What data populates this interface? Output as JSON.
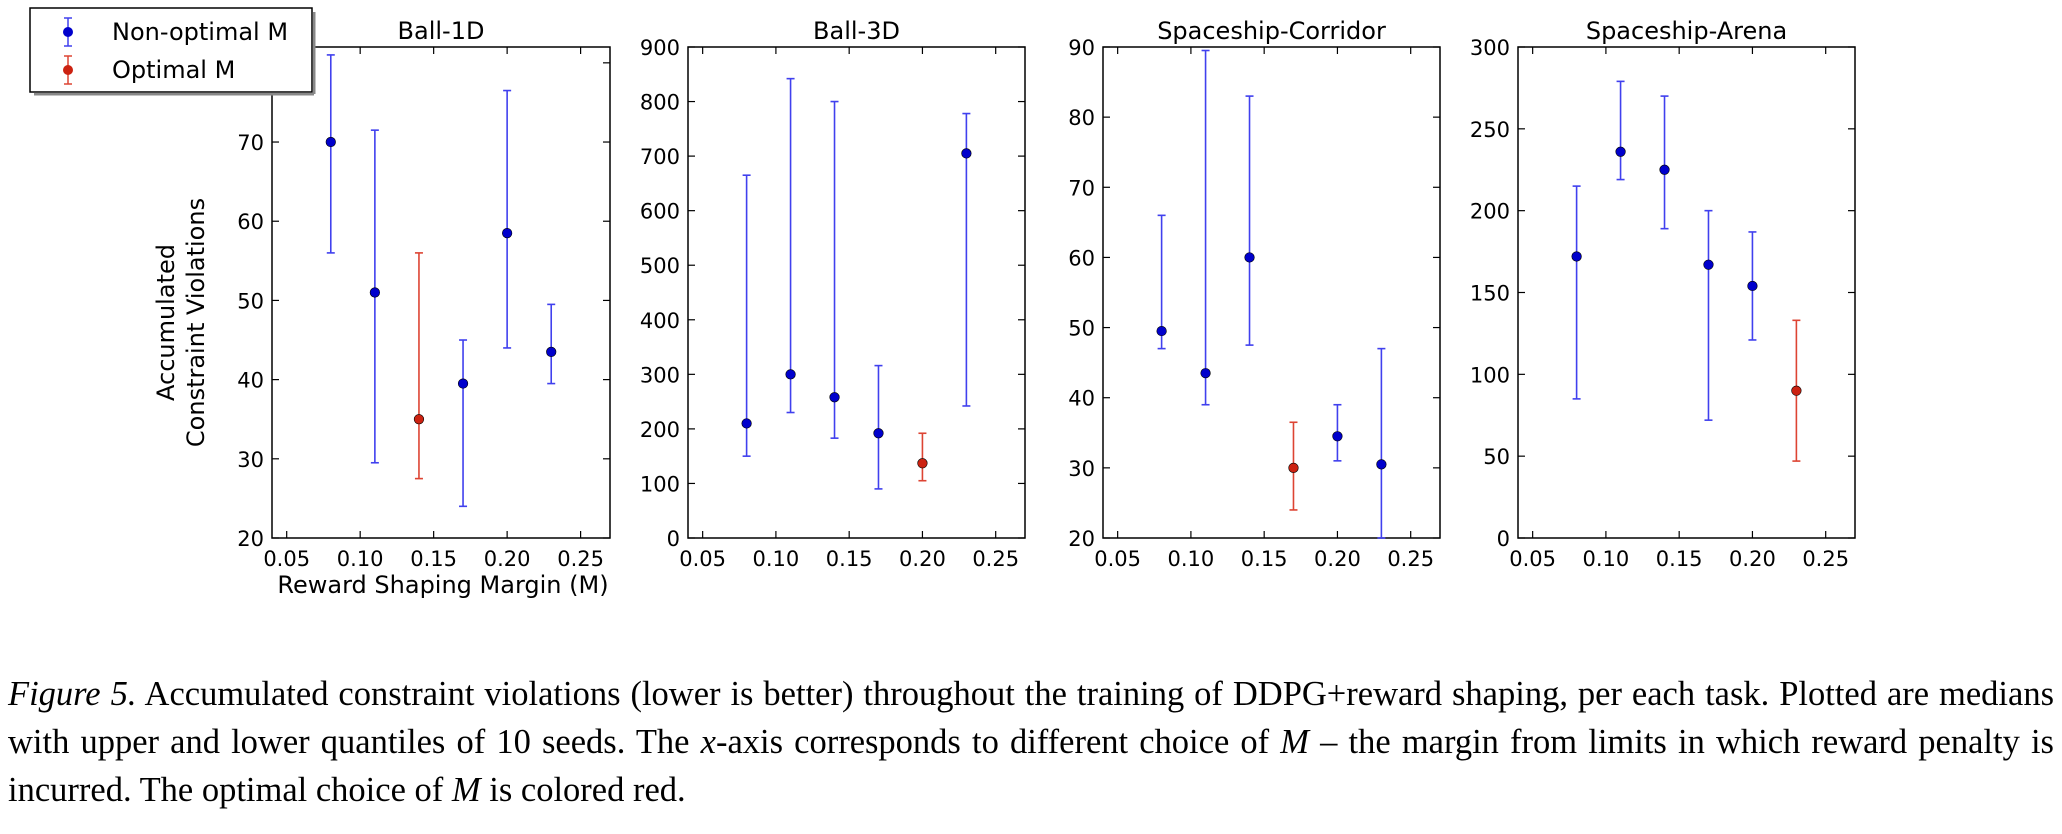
{
  "chart_data": [
    {
      "type": "scatter",
      "title": "Ball-1D",
      "xlabel": "Reward Shaping Margin (M)",
      "ylabel": [
        "Accumulated",
        "Constraint Violations"
      ],
      "xlim": [
        0.04,
        0.27
      ],
      "ylim": [
        20,
        82
      ],
      "xticks": [
        "0.05",
        "0.10",
        "0.15",
        "0.20",
        "0.25"
      ],
      "yticks": [
        "20",
        "30",
        "40",
        "50",
        "60",
        "70",
        "80"
      ],
      "points": [
        {
          "x": 0.08,
          "y": 70.0,
          "lo": 56.0,
          "hi": 81.0,
          "optimal": false
        },
        {
          "x": 0.11,
          "y": 51.0,
          "lo": 29.5,
          "hi": 71.5,
          "optimal": false
        },
        {
          "x": 0.14,
          "y": 35.0,
          "lo": 27.5,
          "hi": 56.0,
          "optimal": true
        },
        {
          "x": 0.17,
          "y": 39.5,
          "lo": 24.0,
          "hi": 45.0,
          "optimal": false
        },
        {
          "x": 0.2,
          "y": 58.5,
          "lo": 44.0,
          "hi": 76.5,
          "optimal": false
        },
        {
          "x": 0.23,
          "y": 43.5,
          "lo": 39.5,
          "hi": 49.5,
          "optimal": false
        }
      ]
    },
    {
      "type": "scatter",
      "title": "Ball-3D",
      "xlim": [
        0.04,
        0.27
      ],
      "ylim": [
        0,
        900
      ],
      "xticks": [
        "0.05",
        "0.10",
        "0.15",
        "0.20",
        "0.25"
      ],
      "yticks": [
        "0",
        "100",
        "200",
        "300",
        "400",
        "500",
        "600",
        "700",
        "800",
        "900"
      ],
      "points": [
        {
          "x": 0.08,
          "y": 210,
          "lo": 150,
          "hi": 665,
          "optimal": false
        },
        {
          "x": 0.11,
          "y": 300,
          "lo": 230,
          "hi": 842,
          "optimal": false
        },
        {
          "x": 0.14,
          "y": 258,
          "lo": 183,
          "hi": 800,
          "optimal": false
        },
        {
          "x": 0.17,
          "y": 192,
          "lo": 90,
          "hi": 316,
          "optimal": false
        },
        {
          "x": 0.2,
          "y": 137,
          "lo": 105,
          "hi": 192,
          "optimal": true
        },
        {
          "x": 0.23,
          "y": 705,
          "lo": 242,
          "hi": 778,
          "optimal": false
        }
      ]
    },
    {
      "type": "scatter",
      "title": "Spaceship-Corridor",
      "xlim": [
        0.04,
        0.27
      ],
      "ylim": [
        20,
        90
      ],
      "xticks": [
        "0.05",
        "0.10",
        "0.15",
        "0.20",
        "0.25"
      ],
      "yticks": [
        "20",
        "30",
        "40",
        "50",
        "60",
        "70",
        "80",
        "90"
      ],
      "points": [
        {
          "x": 0.08,
          "y": 49.5,
          "lo": 47.0,
          "hi": 66.0,
          "optimal": false
        },
        {
          "x": 0.11,
          "y": 43.5,
          "lo": 39.0,
          "hi": 89.5,
          "optimal": false
        },
        {
          "x": 0.14,
          "y": 60.0,
          "lo": 47.5,
          "hi": 83.0,
          "optimal": false
        },
        {
          "x": 0.17,
          "y": 30.0,
          "lo": 24.0,
          "hi": 36.5,
          "optimal": true
        },
        {
          "x": 0.2,
          "y": 34.5,
          "lo": 31.0,
          "hi": 39.0,
          "optimal": false
        },
        {
          "x": 0.23,
          "y": 30.5,
          "lo": 20.0,
          "hi": 47.0,
          "optimal": false
        }
      ]
    },
    {
      "type": "scatter",
      "title": "Spaceship-Arena",
      "xlim": [
        0.04,
        0.27
      ],
      "ylim": [
        0,
        300
      ],
      "xticks": [
        "0.05",
        "0.10",
        "0.15",
        "0.20",
        "0.25"
      ],
      "yticks": [
        "0",
        "50",
        "100",
        "150",
        "200",
        "250",
        "300"
      ],
      "points": [
        {
          "x": 0.08,
          "y": 172,
          "lo": 85,
          "hi": 215,
          "optimal": false
        },
        {
          "x": 0.11,
          "y": 236,
          "lo": 219,
          "hi": 279,
          "optimal": false
        },
        {
          "x": 0.14,
          "y": 225,
          "lo": 189,
          "hi": 270,
          "optimal": false
        },
        {
          "x": 0.17,
          "y": 167,
          "lo": 72,
          "hi": 200,
          "optimal": false
        },
        {
          "x": 0.2,
          "y": 154,
          "lo": 121,
          "hi": 187,
          "optimal": false
        },
        {
          "x": 0.23,
          "y": 90,
          "lo": 47,
          "hi": 133,
          "optimal": true
        }
      ]
    }
  ],
  "legend": {
    "placement": "top-left",
    "items": [
      {
        "label": "Non-optimal M",
        "color": "#0000cc",
        "bar_color": "#4040ee"
      },
      {
        "label": "Optimal M",
        "color": "#cc2211",
        "bar_color": "#dd4433"
      }
    ]
  },
  "caption": {
    "figure_label": "Figure 5.",
    "line1": " Accumulated constraint violations (lower is better) throughout the training of DDPG+reward shaping, per each task. Plotted are medians with upper and lower quantiles of 10 seeds. The ",
    "x_symbol": "x",
    "line2": "-axis corresponds to different choice of ",
    "m_symbol": "M",
    "line3": " – the margin from limits in which reward penalty is incurred. The optimal choice of ",
    "m_symbol2": "M",
    "line4": " is colored red."
  }
}
